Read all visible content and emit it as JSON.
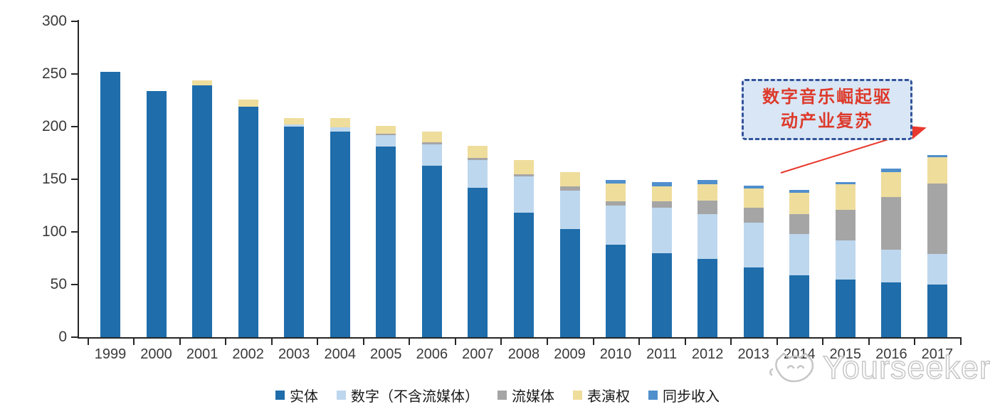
{
  "chart_data": {
    "type": "bar",
    "stacked": true,
    "title": "",
    "xlabel": "",
    "ylabel": "",
    "categories": [
      "1999",
      "2000",
      "2001",
      "2002",
      "2003",
      "2004",
      "2005",
      "2006",
      "2007",
      "2008",
      "2009",
      "2010",
      "2011",
      "2012",
      "2013",
      "2014",
      "2015",
      "2016",
      "2017"
    ],
    "series": [
      {
        "name": "实体",
        "color": "#1F6DAB",
        "values": [
          252,
          234,
          239,
          219,
          200,
          195,
          181,
          163,
          142,
          118,
          103,
          88,
          80,
          74,
          66,
          59,
          55,
          52,
          50
        ]
      },
      {
        "name": "数字（不含流媒体）",
        "color": "#BDD7EE",
        "values": [
          0,
          0,
          0,
          0,
          2,
          4,
          11,
          20,
          26,
          35,
          36,
          37,
          43,
          43,
          43,
          39,
          37,
          31,
          29
        ]
      },
      {
        "name": "流媒体",
        "color": "#A5A5A5",
        "values": [
          0,
          0,
          0,
          0,
          0,
          0,
          1,
          2,
          2,
          2,
          4,
          4,
          6,
          13,
          14,
          19,
          29,
          50,
          67
        ]
      },
      {
        "name": "表演权",
        "color": "#EFDD9C",
        "values": [
          0,
          0,
          5,
          7,
          6,
          9,
          8,
          10,
          12,
          13,
          14,
          17,
          14,
          15,
          18,
          20,
          24,
          24,
          25
        ]
      },
      {
        "name": "同步收入",
        "color": "#4F8FCC",
        "values": [
          0,
          0,
          0,
          0,
          0,
          0,
          0,
          0,
          0,
          0,
          0,
          3,
          4,
          4,
          3,
          3,
          2,
          3,
          2
        ]
      }
    ],
    "ylim": [
      0,
      300
    ],
    "yticks": [
      0,
      50,
      100,
      150,
      200,
      250,
      300
    ],
    "grid": false,
    "legend_position": "bottom",
    "axis_color": "#262626",
    "tick_label_color": "#3a3a3a"
  },
  "annotation": {
    "line1": "数字音乐崛起驱",
    "line2": "动产业复苏",
    "fill_color": "#D9E6F5",
    "border_color": "#33549C",
    "text_color": "#DD3A2B",
    "arrow_color": "#E8392E"
  },
  "watermark": {
    "text": "Yourseeker",
    "logo": "cat-logo-icon",
    "color": "#c6c6c6"
  }
}
